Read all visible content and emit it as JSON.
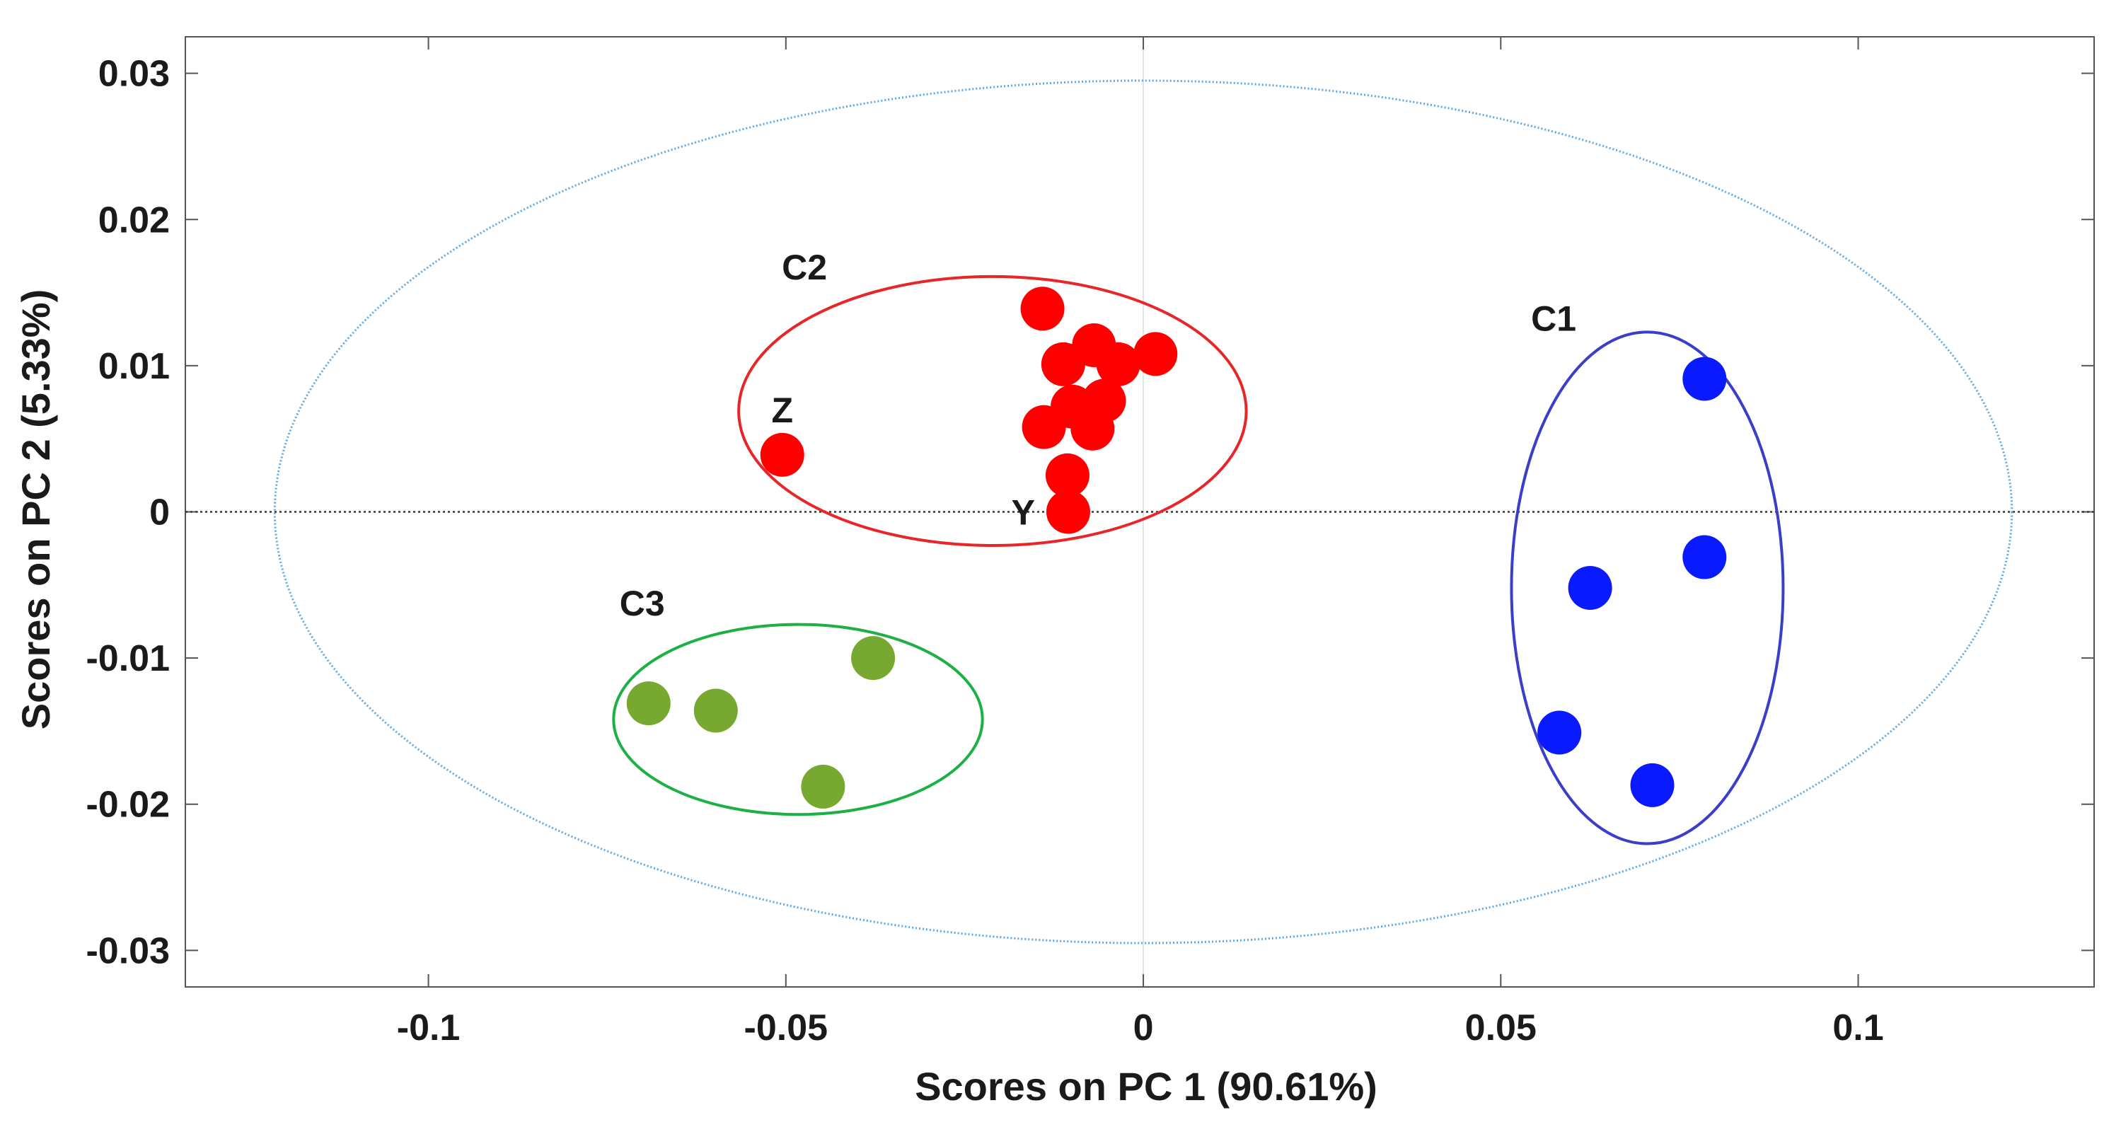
{
  "chart_data": {
    "type": "scatter",
    "title": "",
    "xlabel": "Scores on PC 1 (90.61%)",
    "ylabel": "Scores on PC 2 (5.33%)",
    "xlim": [
      -0.134,
      0.133
    ],
    "ylim": [
      -0.0325,
      0.0325
    ],
    "x_ticks": [
      -0.1,
      -0.05,
      0,
      0.05,
      0.1
    ],
    "x_tick_labels": [
      "-0.1",
      "-0.05",
      "0",
      "0.05",
      "0.1"
    ],
    "y_ticks": [
      0.03,
      0.02,
      0.01,
      0,
      -0.01,
      -0.02,
      -0.03
    ],
    "y_tick_labels": [
      "0.03",
      "0.02",
      "0.01",
      "0",
      "-0.01",
      "-0.02",
      "-0.03"
    ],
    "grid": false,
    "zero_line": {
      "axis": "y",
      "value": 0,
      "color": "#333333"
    },
    "confidence_ellipse": {
      "center": [
        0,
        0
      ],
      "radii": [
        0.1215,
        0.0295
      ],
      "color": "#5aa9e6"
    },
    "series": [
      {
        "name": "C1",
        "color": "#0a1aff",
        "ellipse_color": "#3b3ec8",
        "ellipse": {
          "center": [
            0.0705,
            -0.0052
          ],
          "radii": [
            0.019,
            0.0175
          ]
        },
        "label_pos": [
          0.0574,
          0.0124
        ],
        "x": [
          0.0785,
          0.0785,
          0.0625,
          0.0582,
          0.0712
        ],
        "y": [
          0.0091,
          -0.0031,
          -0.0052,
          -0.0151,
          -0.0187
        ]
      },
      {
        "name": "C2",
        "color": "#ff0000",
        "ellipse_color": "#e8262a",
        "ellipse": {
          "center": [
            -0.0211,
            0.0069
          ],
          "radii": [
            0.0355,
            0.0092
          ]
        },
        "label_pos": [
          -0.0474,
          0.0159
        ],
        "x": [
          -0.0141,
          -0.0069,
          -0.0112,
          -0.0035,
          0.0017,
          -0.0099,
          -0.0055,
          -0.0139,
          -0.0071,
          -0.0106,
          -0.0105,
          -0.0505
        ],
        "y": [
          0.0139,
          0.0114,
          0.0101,
          0.0101,
          0.0108,
          0.0072,
          0.0076,
          0.0058,
          0.0057,
          0.0025,
          0.0,
          0.0039
        ]
      },
      {
        "name": "C3",
        "color": "#77a82f",
        "ellipse_color": "#1db045",
        "ellipse": {
          "center": [
            -0.0483,
            -0.0142
          ],
          "radii": [
            0.0258,
            0.0065
          ]
        },
        "label_pos": [
          -0.0701,
          -0.0071
        ],
        "x": [
          -0.0378,
          -0.0692,
          -0.0598,
          -0.0448
        ],
        "y": [
          -0.01,
          -0.0131,
          -0.0136,
          -0.0188
        ]
      }
    ],
    "annotations": [
      {
        "text": "Z",
        "x": -0.0505,
        "y": 0.007
      },
      {
        "text": "Y",
        "x": -0.0168,
        "y": 0.0
      }
    ]
  }
}
